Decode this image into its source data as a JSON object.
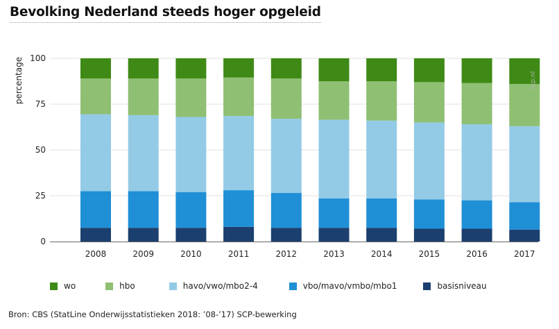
{
  "title": "Bevolking Nederland steeds hoger opgeleid",
  "watermark": "scp.nl",
  "source": "Bron:  CBS (StatLine Onderwijsstatistieken 2018: ’08-’17) SCP-bewerking",
  "chart_data": {
    "type": "bar",
    "stacked": true,
    "ylabel": "percentage",
    "xlabel": "",
    "ylim": [
      0,
      100
    ],
    "yticks": [
      0,
      25,
      50,
      75,
      100
    ],
    "categories": [
      "2008",
      "2009",
      "2010",
      "2011",
      "2012",
      "2013",
      "2014",
      "2015",
      "2016",
      "2017"
    ],
    "series": [
      {
        "name": "basisniveau",
        "color": "#1b3f6e",
        "values": [
          7.5,
          7.5,
          7.5,
          8,
          7.5,
          7.5,
          7.5,
          7,
          7,
          6.5
        ]
      },
      {
        "name": "vbo/mavo/vmbo/mbo1",
        "color": "#1f8fd6",
        "values": [
          20,
          20,
          19.5,
          20,
          19,
          16,
          16,
          16,
          15.5,
          15
        ]
      },
      {
        "name": "havo/vwo/mbo2-4",
        "color": "#93cbe6",
        "values": [
          42,
          41.5,
          41,
          40.5,
          40.5,
          43,
          42.5,
          42,
          41.5,
          41.5
        ]
      },
      {
        "name": "hbo",
        "color": "#8fbf72",
        "values": [
          19.5,
          20,
          21,
          21,
          22,
          21,
          21.5,
          22,
          22.5,
          23
        ]
      },
      {
        "name": "wo",
        "color": "#3f8a16",
        "values": [
          11,
          11,
          11,
          10.5,
          11,
          12.5,
          12.5,
          13,
          13.5,
          14
        ]
      }
    ],
    "legend_order": [
      "wo",
      "hbo",
      "havo/vwo/mbo2-4",
      "vbo/mavo/vmbo/mbo1",
      "basisniveau"
    ],
    "grid": true,
    "legend_position": "bottom"
  }
}
